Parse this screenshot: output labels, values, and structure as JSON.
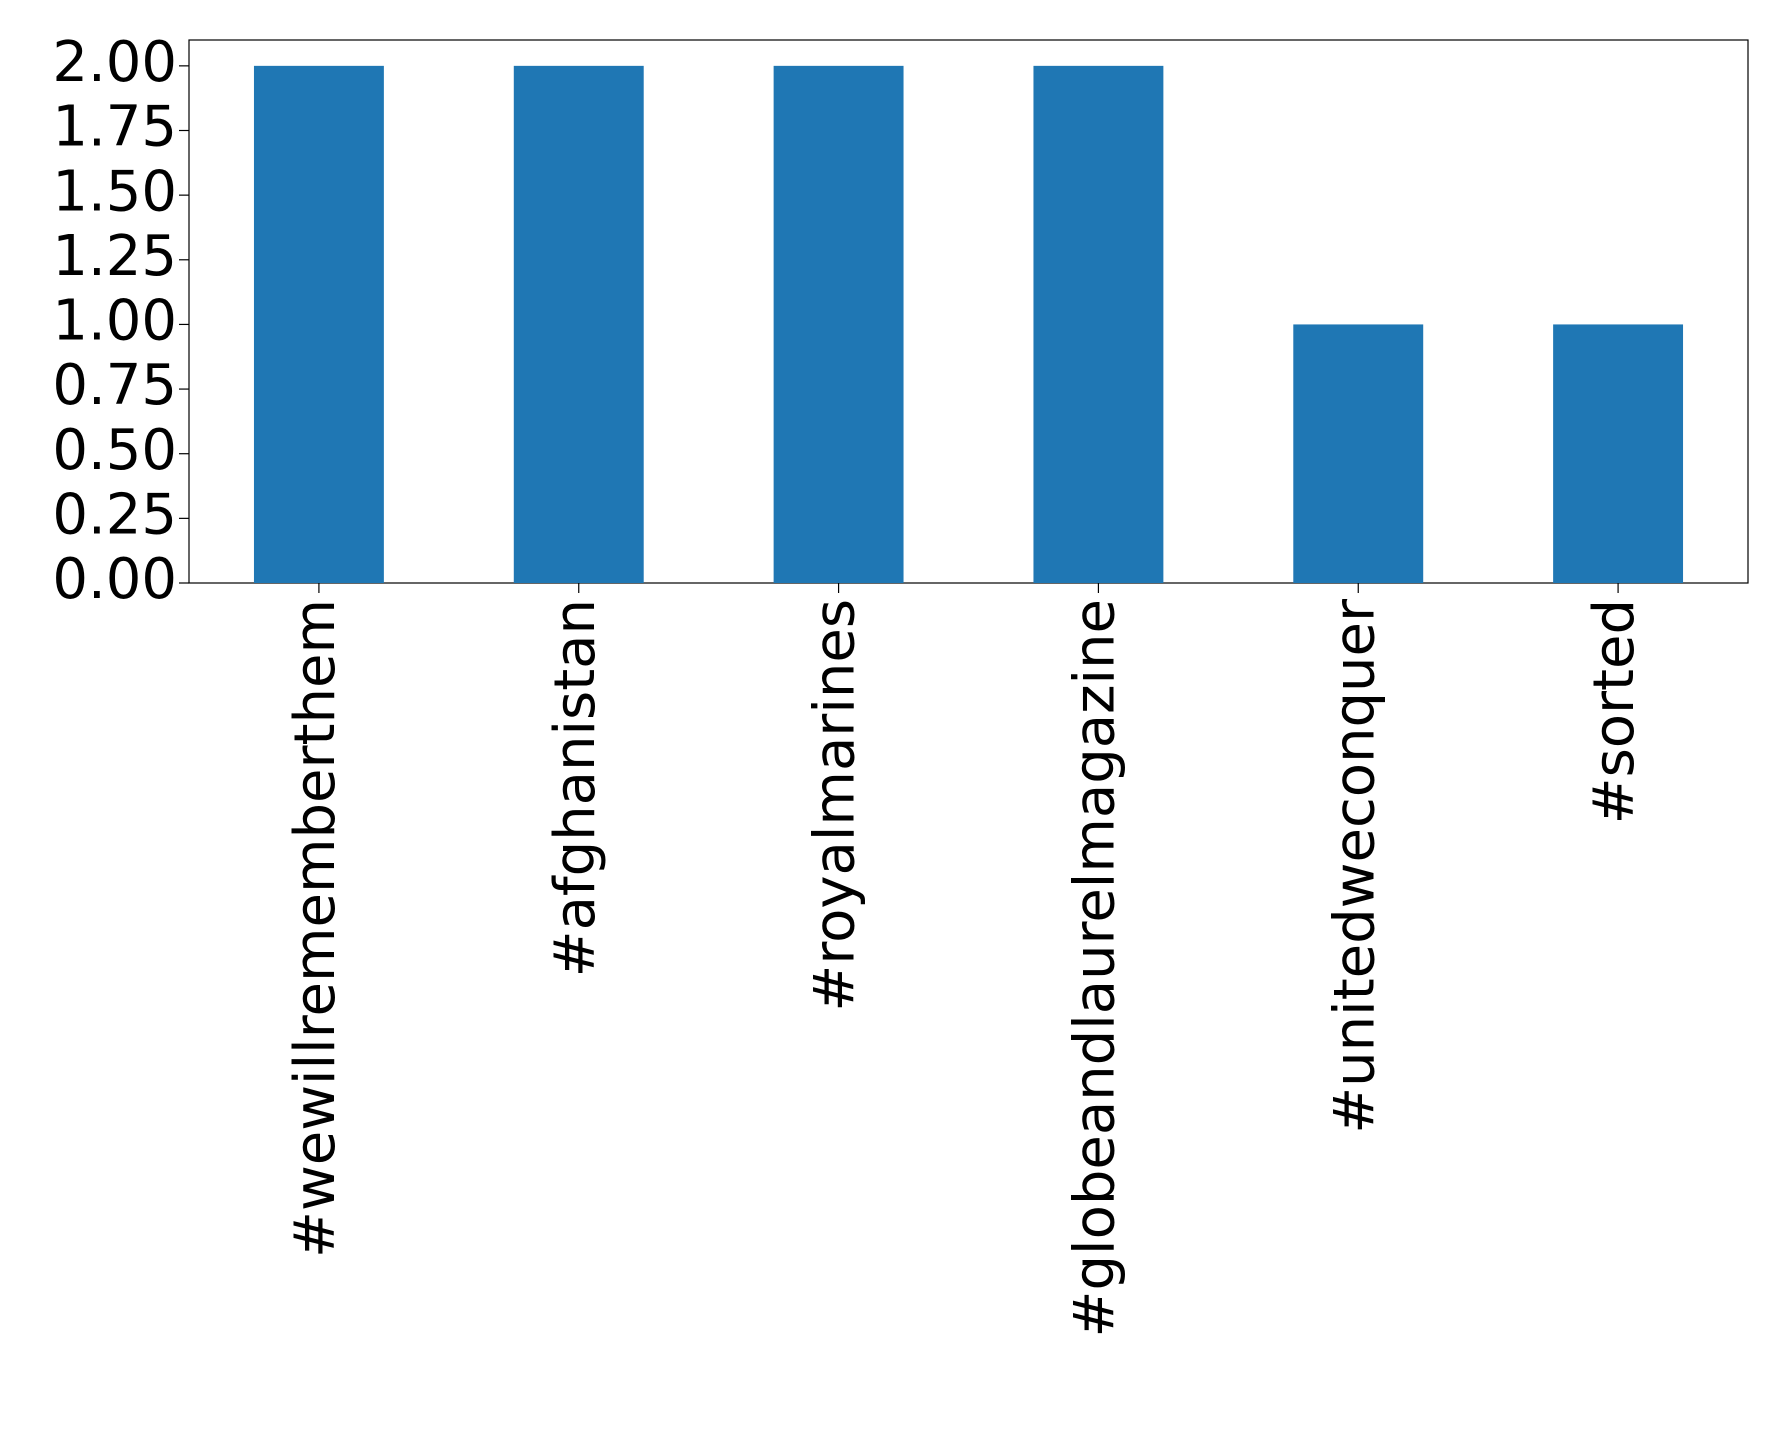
{
  "chart_data": {
    "type": "bar",
    "categories": [
      "#wewillrememberthem",
      "#afghanistan",
      "#royalmarines",
      "#globeandlaurelmagazine",
      "#unitedweconquer",
      "#sorted"
    ],
    "values": [
      2,
      2,
      2,
      2,
      1,
      1
    ],
    "color": "#1f77b4",
    "ylim": [
      0,
      2.1
    ],
    "yticks": [
      {
        "value": 0,
        "label": "0.00"
      },
      {
        "value": 0.25,
        "label": "0.25"
      },
      {
        "value": 0.5,
        "label": "0.50"
      },
      {
        "value": 0.75,
        "label": "0.75"
      },
      {
        "value": 1,
        "label": "1.00"
      },
      {
        "value": 1.25,
        "label": "1.25"
      },
      {
        "value": 1.5,
        "label": "1.50"
      },
      {
        "value": 1.75,
        "label": "1.75"
      },
      {
        "value": 2,
        "label": "2.00"
      }
    ],
    "grid": false
  }
}
